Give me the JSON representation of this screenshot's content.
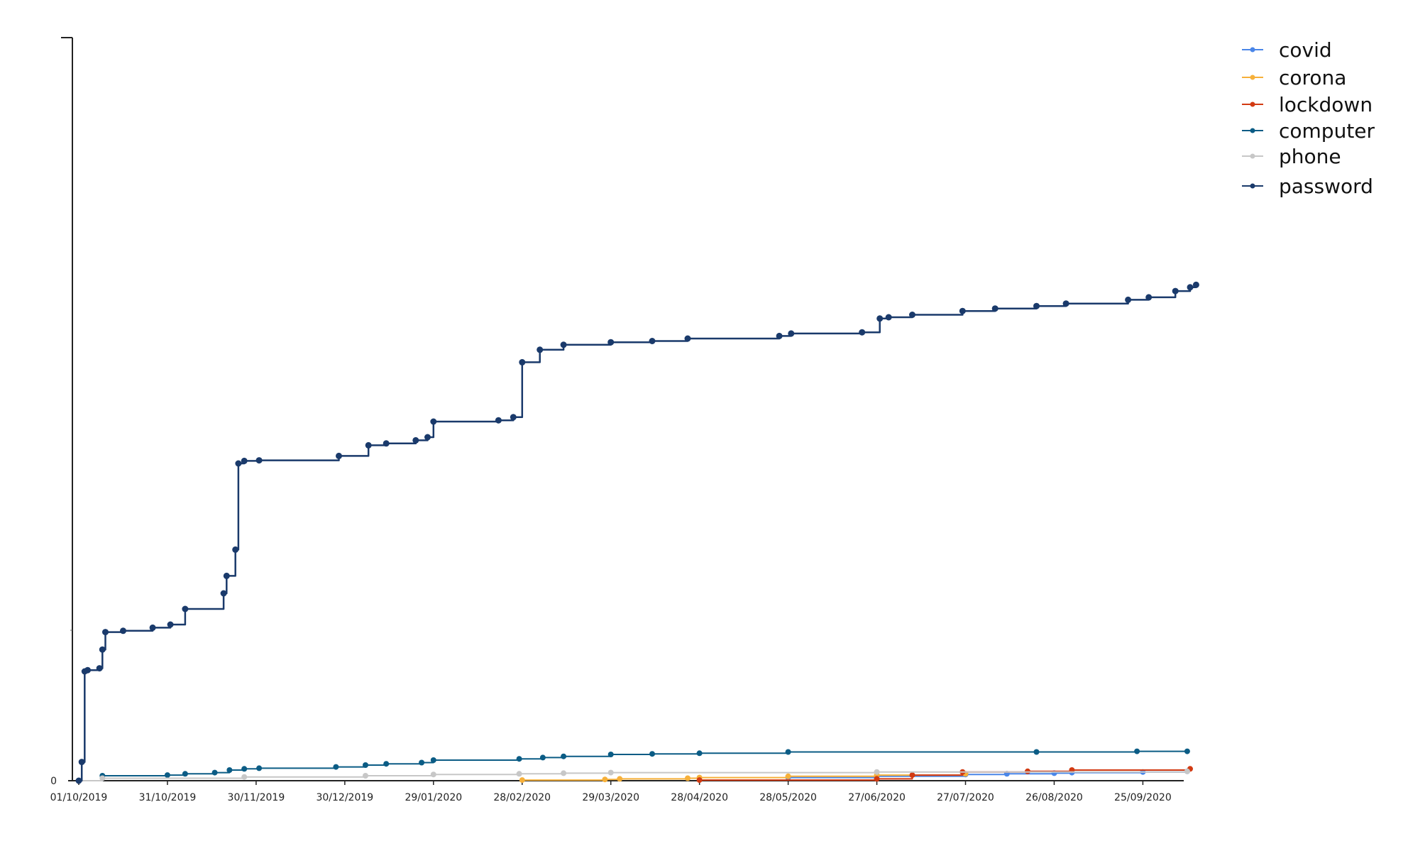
{
  "chart_data": {
    "type": "line",
    "title": "",
    "xlabel": "",
    "ylabel": "",
    "x_ticks": [
      "01/10/2019",
      "31/10/2019",
      "30/11/2019",
      "30/12/2019",
      "29/01/2020",
      "28/02/2020",
      "29/03/2020",
      "28/04/2020",
      "28/05/2020",
      "27/06/2020",
      "27/07/2020",
      "26/08/2020",
      "25/09/2020"
    ],
    "x_range": [
      "2019-10-01",
      "2020-10-13"
    ],
    "y_ticks": [
      "0"
    ],
    "ylim": [
      0,
      1000
    ],
    "grid": false,
    "legend_position": "top-right",
    "series": [
      {
        "name": "covid",
        "color": "#4A86E8",
        "points": [
          [
            "2020-05-28",
            5
          ],
          [
            "2020-06-27",
            7
          ],
          [
            "2020-07-27",
            10
          ],
          [
            "2020-08-10",
            11
          ],
          [
            "2020-08-26",
            12
          ],
          [
            "2020-09-01",
            13
          ],
          [
            "2020-09-25",
            14
          ],
          [
            "2020-10-10",
            15
          ]
        ]
      },
      {
        "name": "corona",
        "color": "#F6B03A",
        "points": [
          [
            "2020-02-28",
            1
          ],
          [
            "2020-03-27",
            2
          ],
          [
            "2020-04-01",
            3
          ],
          [
            "2020-04-24",
            4
          ],
          [
            "2020-04-28",
            5
          ],
          [
            "2020-05-28",
            7
          ],
          [
            "2020-06-27",
            9
          ],
          [
            "2020-07-27",
            11
          ]
        ]
      },
      {
        "name": "lockdown",
        "color": "#D23A12",
        "points": [
          [
            "2020-04-28",
            1
          ],
          [
            "2020-06-27",
            3
          ],
          [
            "2020-07-09",
            9
          ],
          [
            "2020-07-26",
            14
          ],
          [
            "2020-08-17",
            15
          ],
          [
            "2020-09-01",
            17
          ],
          [
            "2020-10-11",
            19
          ]
        ]
      },
      {
        "name": "computer",
        "color": "#0B5C85",
        "points": [
          [
            "2019-10-01",
            0
          ],
          [
            "2019-10-09",
            8
          ],
          [
            "2019-10-31",
            9
          ],
          [
            "2019-11-06",
            11
          ],
          [
            "2019-11-16",
            13
          ],
          [
            "2019-11-21",
            17
          ],
          [
            "2019-11-26",
            19
          ],
          [
            "2019-12-01",
            20
          ],
          [
            "2019-12-27",
            22
          ],
          [
            "2020-01-06",
            25
          ],
          [
            "2020-01-13",
            27
          ],
          [
            "2020-01-25",
            29
          ],
          [
            "2020-01-29",
            33
          ],
          [
            "2020-02-27",
            35
          ],
          [
            "2020-03-06",
            37
          ],
          [
            "2020-03-13",
            39
          ],
          [
            "2020-03-29",
            42
          ],
          [
            "2020-04-12",
            43
          ],
          [
            "2020-04-28",
            44
          ],
          [
            "2020-05-28",
            46
          ],
          [
            "2020-08-20",
            46
          ],
          [
            "2020-09-23",
            47
          ],
          [
            "2020-10-10",
            47
          ]
        ]
      },
      {
        "name": "phone",
        "color": "#C7C7C7",
        "points": [
          [
            "2019-10-01",
            0
          ],
          [
            "2019-10-09",
            4
          ],
          [
            "2019-11-26",
            6
          ],
          [
            "2020-01-06",
            8
          ],
          [
            "2020-01-29",
            10
          ],
          [
            "2020-02-27",
            11
          ],
          [
            "2020-03-13",
            12
          ],
          [
            "2020-03-29",
            13
          ],
          [
            "2020-06-27",
            14
          ],
          [
            "2020-10-10",
            15
          ]
        ]
      },
      {
        "name": "password",
        "color": "#1A3A6B",
        "points": [
          [
            "2019-10-01",
            0
          ],
          [
            "2019-10-02",
            30
          ],
          [
            "2019-10-03",
            175
          ],
          [
            "2019-10-04",
            177
          ],
          [
            "2019-10-08",
            180
          ],
          [
            "2019-10-09",
            210
          ],
          [
            "2019-10-10",
            238
          ],
          [
            "2019-10-16",
            240
          ],
          [
            "2019-10-26",
            245
          ],
          [
            "2019-11-01",
            250
          ],
          [
            "2019-11-06",
            275
          ],
          [
            "2019-11-19",
            300
          ],
          [
            "2019-11-20",
            328
          ],
          [
            "2019-11-23",
            370
          ],
          [
            "2019-11-24",
            508
          ],
          [
            "2019-11-26",
            512
          ],
          [
            "2019-12-01",
            513
          ],
          [
            "2019-12-28",
            520
          ],
          [
            "2020-01-07",
            537
          ],
          [
            "2020-01-13",
            540
          ],
          [
            "2020-01-23",
            545
          ],
          [
            "2020-01-27",
            550
          ],
          [
            "2020-01-29",
            575
          ],
          [
            "2020-02-20",
            577
          ],
          [
            "2020-02-25",
            582
          ],
          [
            "2020-02-28",
            670
          ],
          [
            "2020-03-05",
            690
          ],
          [
            "2020-03-13",
            698
          ],
          [
            "2020-03-29",
            702
          ],
          [
            "2020-04-12",
            704
          ],
          [
            "2020-04-24",
            708
          ],
          [
            "2020-05-25",
            712
          ],
          [
            "2020-05-29",
            716
          ],
          [
            "2020-06-22",
            718
          ],
          [
            "2020-06-28",
            740
          ],
          [
            "2020-07-01",
            742
          ],
          [
            "2020-07-09",
            746
          ],
          [
            "2020-07-26",
            752
          ],
          [
            "2020-08-06",
            756
          ],
          [
            "2020-08-20",
            760
          ],
          [
            "2020-08-30",
            764
          ],
          [
            "2020-09-20",
            770
          ],
          [
            "2020-09-27",
            774
          ],
          [
            "2020-10-06",
            784
          ],
          [
            "2020-10-11",
            790
          ],
          [
            "2020-10-13",
            794
          ]
        ]
      }
    ]
  }
}
